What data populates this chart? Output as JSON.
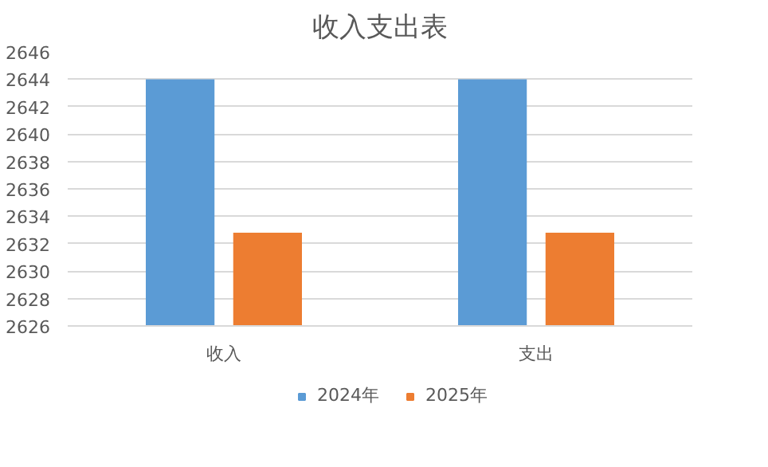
{
  "chart_data": {
    "type": "bar",
    "title": "收入支出表",
    "categories": [
      "收入",
      "支出"
    ],
    "series": [
      {
        "name": "2024年",
        "color": "#5b9bd5",
        "values": [
          2644,
          2644
        ]
      },
      {
        "name": "2025年",
        "color": "#ed7d31",
        "values": [
          2632.8,
          2632.8
        ]
      }
    ],
    "ylim": [
      2626,
      2646
    ],
    "yticks": [
      2626,
      2628,
      2630,
      2632,
      2634,
      2636,
      2638,
      2640,
      2642,
      2644,
      2646
    ],
    "grid": "y",
    "legend": "bottom"
  }
}
